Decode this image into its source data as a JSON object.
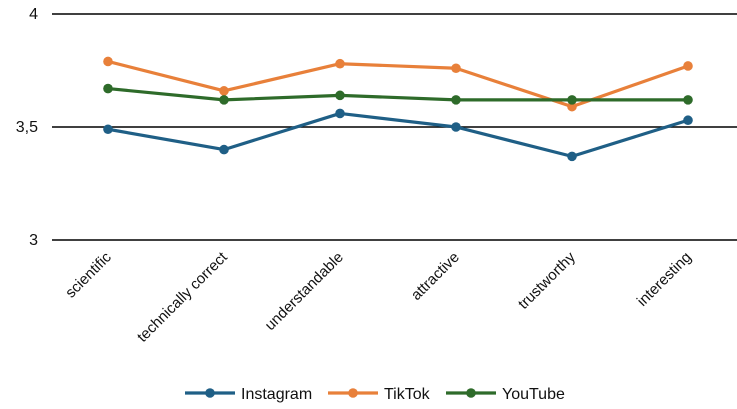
{
  "chart_data": {
    "type": "line",
    "categories": [
      "scientific",
      "technically correct",
      "understandable",
      "attractive",
      "trustworthy",
      "interesting"
    ],
    "series": [
      {
        "name": "Instagram",
        "color": "#1f5f86",
        "values": [
          3.49,
          3.4,
          3.56,
          3.5,
          3.37,
          3.53
        ]
      },
      {
        "name": "TikTok",
        "color": "#e8803a",
        "values": [
          3.79,
          3.66,
          3.78,
          3.76,
          3.59,
          3.77
        ]
      },
      {
        "name": "YouTube",
        "color": "#2e6b2a",
        "values": [
          3.67,
          3.62,
          3.64,
          3.62,
          3.62,
          3.62
        ]
      }
    ],
    "yticks": [
      {
        "value": 3,
        "label": "3"
      },
      {
        "value": 3.5,
        "label": "3,5"
      },
      {
        "value": 4,
        "label": "4"
      }
    ],
    "ylim": [
      3,
      4
    ],
    "grid": true,
    "legend_position": "bottom"
  }
}
